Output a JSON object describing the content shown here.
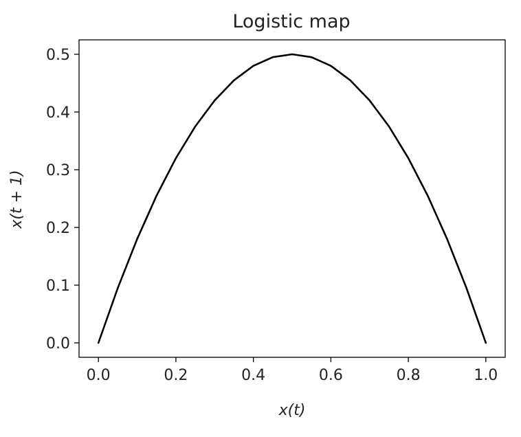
{
  "chart_data": {
    "type": "line",
    "title": "Logistic map",
    "xlabel": "x(t)",
    "ylabel": "x(t + 1)",
    "xlim": [
      -0.05,
      1.05
    ],
    "ylim": [
      -0.025,
      0.525
    ],
    "xticks": [
      "0.0",
      "0.2",
      "0.4",
      "0.6",
      "0.8",
      "1.0"
    ],
    "yticks": [
      "0.0",
      "0.1",
      "0.2",
      "0.3",
      "0.4",
      "0.5"
    ],
    "grid": false,
    "series": [
      {
        "color": "#000000",
        "x": [
          0.0,
          0.05,
          0.1,
          0.15,
          0.2,
          0.25,
          0.3,
          0.35,
          0.4,
          0.45,
          0.5,
          0.55,
          0.6,
          0.65,
          0.7,
          0.75,
          0.8,
          0.85,
          0.9,
          0.95,
          1.0
        ],
        "y": [
          0.0,
          0.095,
          0.18,
          0.255,
          0.32,
          0.375,
          0.42,
          0.455,
          0.48,
          0.495,
          0.5,
          0.495,
          0.48,
          0.455,
          0.42,
          0.375,
          0.32,
          0.255,
          0.18,
          0.095,
          0.0
        ]
      }
    ]
  }
}
